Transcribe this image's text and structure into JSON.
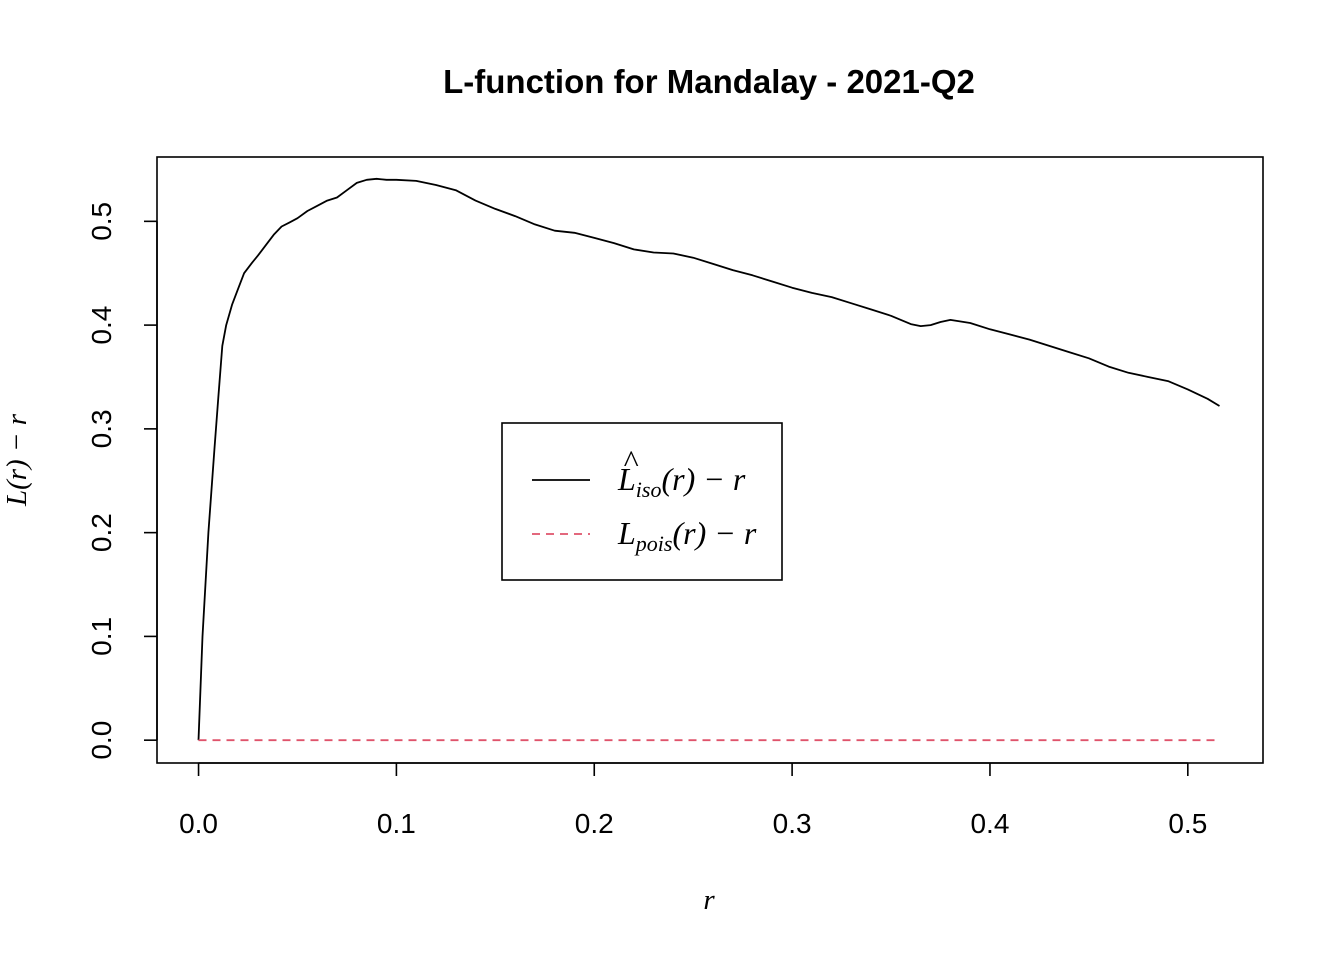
{
  "chart_data": {
    "type": "line",
    "title": "L-function for Mandalay - 2021-Q2",
    "xlabel": "r",
    "ylabel": "L(r) − r",
    "xlim": [
      -0.021,
      0.538
    ],
    "ylim": [
      -0.022,
      0.562
    ],
    "x_ticks": [
      "0.0",
      "0.1",
      "0.2",
      "0.3",
      "0.4",
      "0.5"
    ],
    "y_ticks": [
      "0.0",
      "0.1",
      "0.2",
      "0.3",
      "0.4",
      "0.5"
    ],
    "grid": false,
    "legend_position": "center",
    "series": [
      {
        "name": "L̂iso(r) − r",
        "legend_main": "L",
        "legend_hat": "^",
        "legend_sub": "iso",
        "legend_tail": "(r) − r",
        "color": "#000000",
        "dash": "solid",
        "x": [
          0,
          0.002,
          0.005,
          0.008,
          0.01,
          0.012,
          0.014,
          0.017,
          0.02,
          0.023,
          0.027,
          0.03,
          0.034,
          0.038,
          0.042,
          0.046,
          0.05,
          0.055,
          0.06,
          0.065,
          0.07,
          0.075,
          0.08,
          0.085,
          0.09,
          0.095,
          0.1,
          0.11,
          0.12,
          0.13,
          0.14,
          0.15,
          0.16,
          0.17,
          0.18,
          0.19,
          0.2,
          0.21,
          0.22,
          0.23,
          0.24,
          0.25,
          0.26,
          0.27,
          0.28,
          0.29,
          0.3,
          0.31,
          0.32,
          0.33,
          0.34,
          0.35,
          0.36,
          0.365,
          0.37,
          0.375,
          0.38,
          0.39,
          0.4,
          0.41,
          0.42,
          0.43,
          0.44,
          0.45,
          0.46,
          0.47,
          0.48,
          0.49,
          0.5,
          0.51,
          0.516
        ],
        "values": [
          0.0,
          0.1,
          0.2,
          0.28,
          0.33,
          0.38,
          0.4,
          0.42,
          0.435,
          0.45,
          0.46,
          0.467,
          0.477,
          0.487,
          0.495,
          0.499,
          0.503,
          0.51,
          0.515,
          0.52,
          0.523,
          0.53,
          0.537,
          0.54,
          0.541,
          0.54,
          0.54,
          0.539,
          0.535,
          0.53,
          0.52,
          0.512,
          0.505,
          0.497,
          0.491,
          0.489,
          0.484,
          0.479,
          0.473,
          0.47,
          0.469,
          0.465,
          0.459,
          0.453,
          0.448,
          0.442,
          0.436,
          0.431,
          0.427,
          0.421,
          0.415,
          0.409,
          0.401,
          0.399,
          0.4,
          0.403,
          0.405,
          0.402,
          0.396,
          0.391,
          0.386,
          0.38,
          0.374,
          0.368,
          0.36,
          0.354,
          0.35,
          0.346,
          0.338,
          0.329,
          0.322
        ]
      },
      {
        "name": "Lpois(r) − r",
        "legend_main": "L",
        "legend_hat": "",
        "legend_sub": "pois",
        "legend_tail": "(r) − r",
        "color": "#DF536B",
        "dash": "dashed",
        "x": [
          0,
          0.516
        ],
        "values": [
          0,
          0
        ]
      }
    ]
  }
}
